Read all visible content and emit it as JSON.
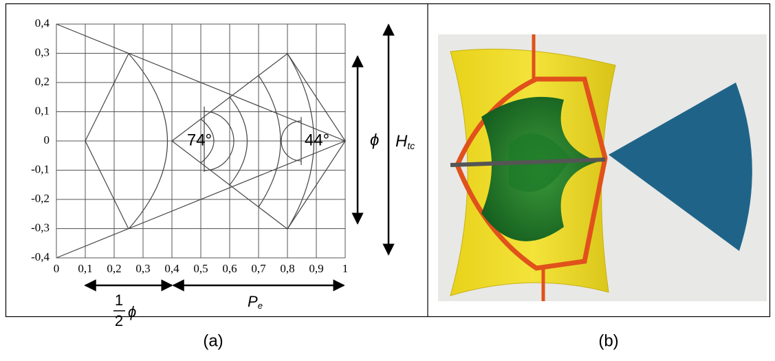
{
  "panel_a": {
    "y_tick_labels": [
      "0,4",
      "0,3",
      "0,2",
      "0,1",
      "0",
      "-0,1",
      "-0,2",
      "-0,3",
      "-0,4"
    ],
    "x_tick_labels": [
      "0",
      "0,1",
      "0,2",
      "0,3",
      "0,4",
      "0,5",
      "0,6",
      "0,7",
      "0,8",
      "0,9",
      "1"
    ],
    "angles": [
      "74°",
      "44°"
    ],
    "phi": "ϕ",
    "h_label": "H",
    "h_sub": "tc",
    "half_num": "1",
    "half_den": "2",
    "half_phi": "ϕ",
    "p_label": "P",
    "p_sub": "e"
  },
  "captions": [
    "(a)",
    "(b)"
  ]
}
